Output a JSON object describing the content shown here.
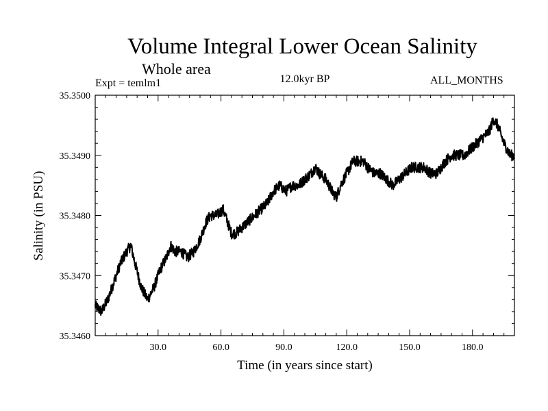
{
  "chart_data": {
    "type": "line",
    "title": "Volume Integral Lower Ocean Salinity",
    "subtitle": "Whole area",
    "left_label": "Expt = temlm1",
    "center_label": "12.0kyr BP",
    "right_label": "ALL_MONTHS",
    "xlabel": "Time (in years since start)",
    "ylabel": "Salinity (in PSU)",
    "xlim": [
      0,
      200
    ],
    "ylim": [
      35.346,
      35.35
    ],
    "xticks": [
      30,
      60,
      90,
      120,
      150,
      180
    ],
    "xtick_labels": [
      "30.0",
      "60.0",
      "90.0",
      "120.0",
      "150.0",
      "180.0"
    ],
    "yticks": [
      35.346,
      35.347,
      35.348,
      35.349,
      35.35
    ],
    "ytick_labels": [
      "35.3460",
      "35.3470",
      "35.3480",
      "35.3490",
      "35.3500"
    ],
    "series": [
      {
        "name": "temlm1",
        "x": [
          0,
          3,
          6,
          9,
          12,
          15,
          17,
          19,
          22,
          25,
          28,
          31,
          34,
          36,
          38,
          41,
          44,
          47,
          50,
          53,
          55,
          58,
          61,
          63,
          65,
          67,
          70,
          73,
          76,
          79,
          82,
          85,
          88,
          91,
          94,
          97,
          100,
          103,
          105,
          107,
          110,
          113,
          115,
          117,
          120,
          123,
          126,
          128,
          130,
          133,
          136,
          139,
          142,
          145,
          148,
          151,
          154,
          157,
          160,
          163,
          165,
          167,
          170,
          173,
          176,
          179,
          182,
          185,
          188,
          190,
          192,
          195,
          198,
          200
        ],
        "y": [
          35.3465,
          35.3464,
          35.3466,
          35.3469,
          35.3472,
          35.3474,
          35.3475,
          35.3472,
          35.3468,
          35.3466,
          35.3468,
          35.3471,
          35.3473,
          35.3475,
          35.3474,
          35.3474,
          35.3473,
          35.3474,
          35.3476,
          35.3479,
          35.348,
          35.348,
          35.3481,
          35.3479,
          35.3477,
          35.3477,
          35.3478,
          35.3479,
          35.348,
          35.3481,
          35.3482,
          35.3484,
          35.3485,
          35.3484,
          35.3485,
          35.3485,
          35.3486,
          35.3487,
          35.3488,
          35.3487,
          35.3486,
          35.3484,
          35.3483,
          35.3485,
          35.3487,
          35.3489,
          35.3489,
          35.3489,
          35.3488,
          35.3487,
          35.3487,
          35.3486,
          35.3485,
          35.3486,
          35.3487,
          35.3488,
          35.3488,
          35.3488,
          35.3487,
          35.3487,
          35.3488,
          35.3489,
          35.349,
          35.349,
          35.349,
          35.3491,
          35.3492,
          35.3493,
          35.3494,
          35.3496,
          35.3495,
          35.3492,
          35.349,
          35.349
        ]
      }
    ]
  }
}
